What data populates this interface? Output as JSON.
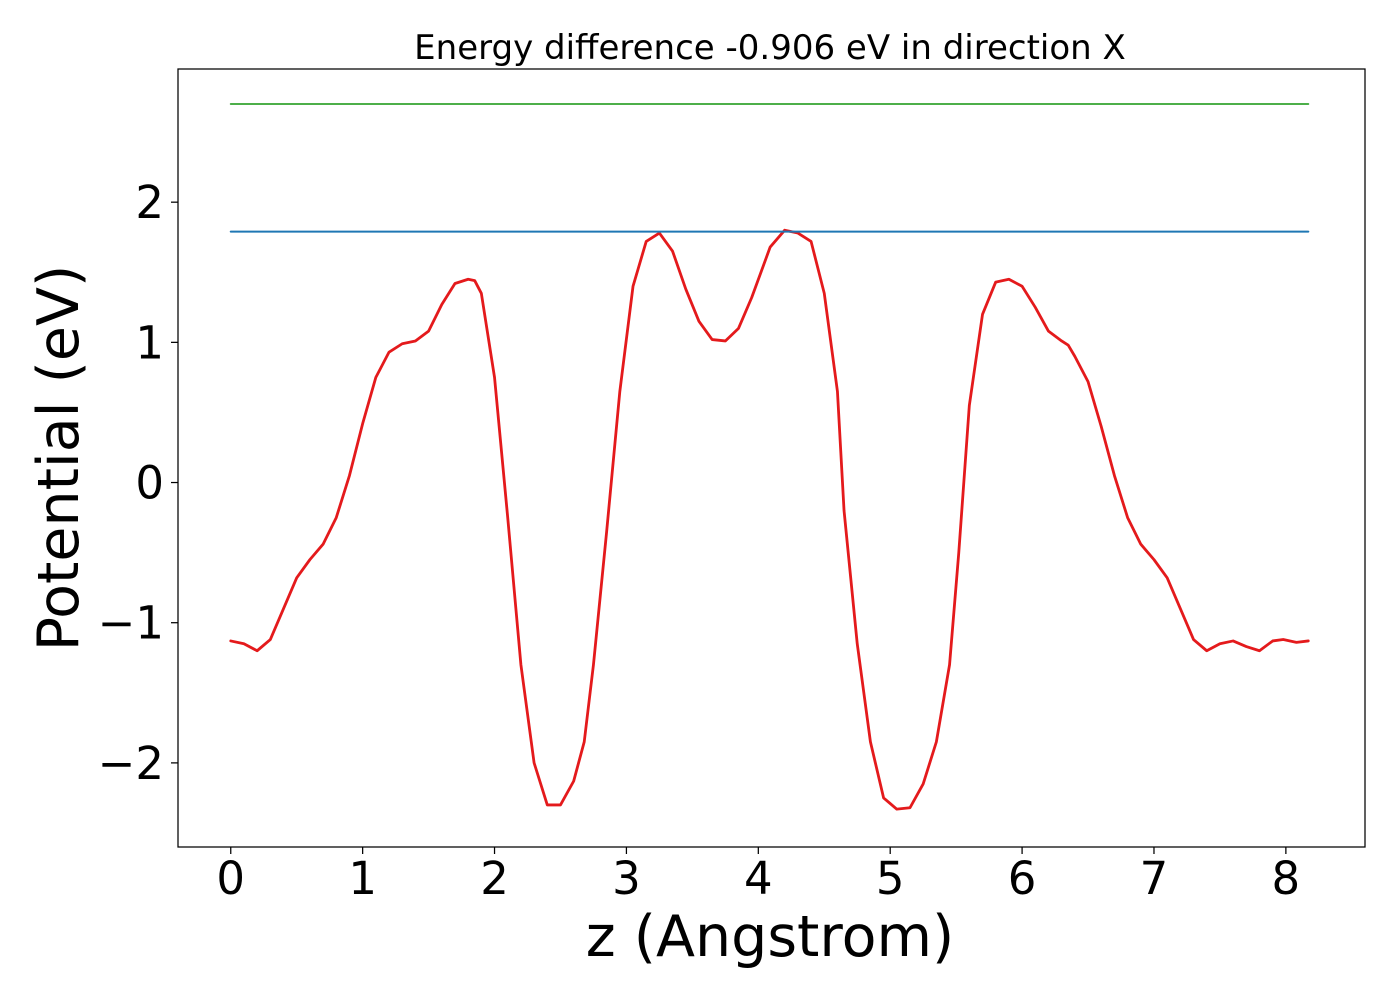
{
  "chart_data": {
    "type": "line",
    "title": "Energy difference -0.906 eV in direction X",
    "xlabel": "z (Angstrom)",
    "ylabel": "Potential (eV)",
    "xlim": [
      -0.4,
      8.6
    ],
    "ylim": [
      -2.6,
      2.95
    ],
    "x_ticks": [
      0,
      1,
      2,
      3,
      4,
      5,
      6,
      7,
      8
    ],
    "x_tick_labels": [
      "0",
      "1",
      "2",
      "3",
      "4",
      "5",
      "6",
      "7",
      "8"
    ],
    "y_ticks": [
      -2,
      -1,
      0,
      1,
      2
    ],
    "y_tick_labels": [
      "−2",
      "−1",
      "0",
      "1",
      "2"
    ],
    "grid": false,
    "legend": "none",
    "series": [
      {
        "color": "#e41a1c",
        "x": [
          0.0,
          0.1,
          0.2,
          0.3,
          0.4,
          0.5,
          0.6,
          0.7,
          0.8,
          0.9,
          1.0,
          1.1,
          1.2,
          1.3,
          1.4,
          1.5,
          1.6,
          1.7,
          1.8,
          1.85,
          1.9,
          2.0,
          2.1,
          2.2,
          2.3,
          2.4,
          2.5,
          2.6,
          2.68,
          2.75,
          2.85,
          2.95,
          3.05,
          3.15,
          3.25,
          3.35,
          3.45,
          3.55,
          3.65,
          3.75,
          3.85,
          3.95,
          4.09,
          4.2,
          4.3,
          4.4,
          4.5,
          4.6,
          4.65,
          4.75,
          4.85,
          4.95,
          5.05,
          5.15,
          5.25,
          5.35,
          5.45,
          5.52,
          5.6,
          5.7,
          5.8,
          5.9,
          6.0,
          6.1,
          6.2,
          6.3,
          6.35,
          6.4,
          6.5,
          6.6,
          6.7,
          6.8,
          6.9,
          7.0,
          7.1,
          7.2,
          7.3,
          7.4,
          7.5,
          7.6,
          7.7,
          7.8,
          7.9,
          7.98,
          8.08,
          8.17
        ],
        "y": [
          -1.13,
          -1.15,
          -1.2,
          -1.12,
          -0.9,
          -0.68,
          -0.55,
          -0.44,
          -0.25,
          0.05,
          0.42,
          0.75,
          0.93,
          0.99,
          1.01,
          1.08,
          1.27,
          1.42,
          1.45,
          1.44,
          1.35,
          0.75,
          -0.25,
          -1.3,
          -2.0,
          -2.3,
          -2.3,
          -2.13,
          -1.85,
          -1.3,
          -0.35,
          0.65,
          1.4,
          1.72,
          1.78,
          1.65,
          1.38,
          1.15,
          1.02,
          1.01,
          1.1,
          1.32,
          1.68,
          1.8,
          1.78,
          1.72,
          1.35,
          0.65,
          -0.2,
          -1.15,
          -1.85,
          -2.25,
          -2.33,
          -2.32,
          -2.15,
          -1.85,
          -1.3,
          -0.5,
          0.55,
          1.2,
          1.43,
          1.45,
          1.4,
          1.25,
          1.08,
          1.01,
          0.98,
          0.9,
          0.72,
          0.4,
          0.05,
          -0.25,
          -0.44,
          -0.55,
          -0.68,
          -0.9,
          -1.12,
          -1.2,
          -1.15,
          -1.13,
          -1.17,
          -1.2,
          -1.13,
          -1.12,
          -1.14,
          -1.13
        ]
      },
      {
        "color": "#1f77b4",
        "x": [
          0.0,
          8.17
        ],
        "y": [
          1.79,
          1.79
        ]
      },
      {
        "color": "#4daf4a",
        "x": [
          0.0,
          8.17
        ],
        "y": [
          2.7,
          2.7
        ]
      }
    ]
  }
}
